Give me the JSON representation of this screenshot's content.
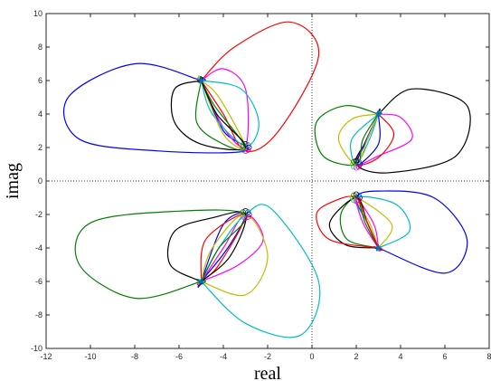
{
  "chart_data": {
    "type": "line",
    "title": "",
    "xlabel": "real",
    "ylabel": "imag",
    "xlim": [
      -12,
      8
    ],
    "ylim": [
      -10,
      10
    ],
    "xticks": [
      -12,
      -10,
      -8,
      -6,
      -4,
      -2,
      0,
      2,
      4,
      6,
      8
    ],
    "yticks": [
      -10,
      -8,
      -6,
      -4,
      -2,
      0,
      2,
      4,
      6,
      8,
      10
    ],
    "grid": false,
    "legend": "none",
    "zero_lines": {
      "color": "#333333",
      "style": "dotted"
    },
    "colors": [
      "#0000ff",
      "#ff0000",
      "#ff00ff",
      "#00bfbf",
      "#bfbf00",
      "#008000",
      "#000000"
    ],
    "shapes": [
      {
        "color": "#0000ff",
        "points": [
          [
            -5,
            6
          ],
          [
            -8,
            7
          ],
          [
            -11,
            5
          ],
          [
            -10.5,
            2.5
          ],
          [
            -7,
            1.8
          ],
          [
            -3,
            1.8
          ],
          [
            -4,
            3
          ],
          [
            -5,
            6
          ]
        ]
      },
      {
        "color": "#ff0000",
        "points": [
          [
            -5,
            6
          ],
          [
            -3.5,
            8
          ],
          [
            -1,
            9.5
          ],
          [
            0.3,
            7.5
          ],
          [
            -1.5,
            3
          ],
          [
            -3,
            1.8
          ],
          [
            -4,
            4
          ],
          [
            -5,
            6
          ]
        ]
      },
      {
        "color": "#ff00ff",
        "points": [
          [
            -5,
            6
          ],
          [
            -4,
            6.7
          ],
          [
            -3,
            5.5
          ],
          [
            -3,
            2.1
          ],
          [
            -4,
            3.2
          ],
          [
            -5,
            6
          ]
        ]
      },
      {
        "color": "#00bfbf",
        "points": [
          [
            -5,
            6
          ],
          [
            -3.2,
            5.5
          ],
          [
            -2.4,
            3.5
          ],
          [
            -3,
            2.1
          ],
          [
            -4.5,
            4
          ],
          [
            -5,
            6
          ]
        ]
      },
      {
        "color": "#bfbf00",
        "points": [
          [
            -5,
            6
          ],
          [
            -4.2,
            5
          ],
          [
            -3,
            2
          ],
          [
            -4,
            2.8
          ],
          [
            -5,
            6
          ]
        ]
      },
      {
        "color": "#008000",
        "points": [
          [
            -5,
            6
          ],
          [
            -5.2,
            3.5
          ],
          [
            -4,
            2.2
          ],
          [
            -3,
            2
          ],
          [
            -4.4,
            4.5
          ],
          [
            -5,
            6
          ]
        ]
      },
      {
        "color": "#000000",
        "points": [
          [
            -5,
            6
          ],
          [
            -6.2,
            5.5
          ],
          [
            -6.2,
            3.5
          ],
          [
            -5,
            2.2
          ],
          [
            -3,
            2
          ],
          [
            -4.3,
            4
          ],
          [
            -5,
            6
          ]
        ]
      },
      {
        "color": "#0000ff",
        "points": [
          [
            -5,
            -6
          ],
          [
            -3.8,
            -4
          ],
          [
            -3,
            -2
          ],
          [
            -4,
            -2.6
          ],
          [
            -5,
            -6
          ]
        ]
      },
      {
        "color": "#ff0000",
        "points": [
          [
            -5,
            -6
          ],
          [
            -4.8,
            -3.5
          ],
          [
            -3,
            -2
          ],
          [
            -4.2,
            -5
          ],
          [
            -5,
            -6
          ]
        ]
      },
      {
        "color": "#ff00ff",
        "points": [
          [
            -5,
            -6
          ],
          [
            -3.3,
            -5
          ],
          [
            -2.2,
            -3.5
          ],
          [
            -3,
            -2
          ],
          [
            -4,
            -4
          ],
          [
            -5,
            -6
          ]
        ]
      },
      {
        "color": "#00bfbf",
        "points": [
          [
            -5,
            -6
          ],
          [
            -3,
            -8.5
          ],
          [
            -0.5,
            -9.2
          ],
          [
            0.3,
            -6
          ],
          [
            -1.8,
            -1.7
          ],
          [
            -3,
            -2
          ],
          [
            -4.2,
            -4
          ],
          [
            -5,
            -6
          ]
        ]
      },
      {
        "color": "#bfbf00",
        "points": [
          [
            -5,
            -6
          ],
          [
            -3,
            -6.8
          ],
          [
            -2,
            -4.5
          ],
          [
            -3,
            -2
          ],
          [
            -4.5,
            -4
          ],
          [
            -5,
            -6
          ]
        ]
      },
      {
        "color": "#008000",
        "points": [
          [
            -5,
            -6
          ],
          [
            -8,
            -7
          ],
          [
            -10.5,
            -5
          ],
          [
            -10,
            -2.5
          ],
          [
            -6,
            -1.8
          ],
          [
            -3,
            -2
          ],
          [
            -4.2,
            -4
          ],
          [
            -5,
            -6
          ]
        ]
      },
      {
        "color": "#000000",
        "points": [
          [
            -5,
            -6
          ],
          [
            -6.4,
            -5
          ],
          [
            -6.2,
            -3
          ],
          [
            -4.5,
            -2.2
          ],
          [
            -3,
            -2
          ],
          [
            -3.7,
            -4.5
          ],
          [
            -5,
            -6
          ]
        ]
      },
      {
        "color": "#000000",
        "points": [
          [
            3,
            4
          ],
          [
            4.5,
            5.5
          ],
          [
            7,
            4.5
          ],
          [
            6.5,
            1.5
          ],
          [
            3.5,
            0.5
          ],
          [
            2,
            1
          ],
          [
            2.5,
            2.5
          ],
          [
            3,
            4
          ]
        ]
      },
      {
        "color": "#ff00ff",
        "points": [
          [
            3,
            4
          ],
          [
            4,
            3.8
          ],
          [
            4.5,
            2.5
          ],
          [
            3,
            1.5
          ],
          [
            2,
            1
          ],
          [
            2.5,
            2.5
          ],
          [
            3,
            4
          ]
        ]
      },
      {
        "color": "#ff0000",
        "points": [
          [
            3,
            4
          ],
          [
            3.7,
            2.8
          ],
          [
            3,
            1.4
          ],
          [
            2,
            1
          ],
          [
            2.5,
            2.5
          ],
          [
            3,
            4
          ]
        ]
      },
      {
        "color": "#0000ff",
        "points": [
          [
            3,
            4
          ],
          [
            2,
            1
          ],
          [
            3,
            2.2
          ],
          [
            3,
            4
          ]
        ]
      },
      {
        "color": "#00bfbf",
        "points": [
          [
            3,
            4
          ],
          [
            2.6,
            2.5
          ],
          [
            2,
            1
          ],
          [
            1.8,
            2.5
          ],
          [
            3,
            4
          ]
        ]
      },
      {
        "color": "#bfbf00",
        "points": [
          [
            3,
            4
          ],
          [
            1.8,
            3.7
          ],
          [
            1.2,
            2.5
          ],
          [
            2,
            1
          ],
          [
            2.5,
            2.5
          ],
          [
            3,
            4
          ]
        ]
      },
      {
        "color": "#008000",
        "points": [
          [
            3,
            4
          ],
          [
            1.5,
            4.5
          ],
          [
            0.2,
            3.5
          ],
          [
            0.5,
            1.5
          ],
          [
            2,
            1
          ],
          [
            2.3,
            2.5
          ],
          [
            3,
            4
          ]
        ]
      },
      {
        "color": "#0000ff",
        "points": [
          [
            3,
            -4
          ],
          [
            6,
            -5.5
          ],
          [
            7,
            -3.5
          ],
          [
            5.5,
            -1
          ],
          [
            3,
            -0.6
          ],
          [
            2,
            -1
          ],
          [
            2.5,
            -2.5
          ],
          [
            3,
            -4
          ]
        ]
      },
      {
        "color": "#00bfbf",
        "points": [
          [
            3,
            -4
          ],
          [
            4.4,
            -3
          ],
          [
            3.8,
            -1.4
          ],
          [
            2,
            -1
          ],
          [
            2.5,
            -2.5
          ],
          [
            3,
            -4
          ]
        ]
      },
      {
        "color": "#bfbf00",
        "points": [
          [
            3,
            -4
          ],
          [
            3.6,
            -2.6
          ],
          [
            2,
            -1
          ],
          [
            2.6,
            -2.5
          ],
          [
            3,
            -4
          ]
        ]
      },
      {
        "color": "#ff00ff",
        "points": [
          [
            3,
            -4
          ],
          [
            2.8,
            -2.6
          ],
          [
            2,
            -1
          ],
          [
            2.3,
            -2.5
          ],
          [
            3,
            -4
          ]
        ]
      },
      {
        "color": "#008000",
        "points": [
          [
            3,
            -4
          ],
          [
            1.6,
            -3.5
          ],
          [
            1.3,
            -2
          ],
          [
            2,
            -1
          ],
          [
            2.4,
            -2.5
          ],
          [
            3,
            -4
          ]
        ]
      },
      {
        "color": "#000000",
        "points": [
          [
            3,
            -4
          ],
          [
            1.5,
            -3.8
          ],
          [
            0.8,
            -2.5
          ],
          [
            2,
            -1
          ],
          [
            2.5,
            -2.5
          ],
          [
            3,
            -4
          ]
        ]
      },
      {
        "color": "#ff0000",
        "points": [
          [
            3,
            -4
          ],
          [
            0.8,
            -3.5
          ],
          [
            0.2,
            -2
          ],
          [
            1,
            -1.2
          ],
          [
            2,
            -1
          ],
          [
            2.5,
            -2.5
          ],
          [
            3,
            -4
          ]
        ]
      }
    ],
    "markers": {
      "star": [
        [
          -5,
          6
        ],
        [
          -5,
          -6
        ],
        [
          3,
          4
        ],
        [
          3,
          -4
        ]
      ],
      "circle_clusters": [
        [
          -3,
          2
        ],
        [
          -3,
          -2
        ],
        [
          2,
          1
        ],
        [
          2,
          -1
        ]
      ]
    }
  }
}
